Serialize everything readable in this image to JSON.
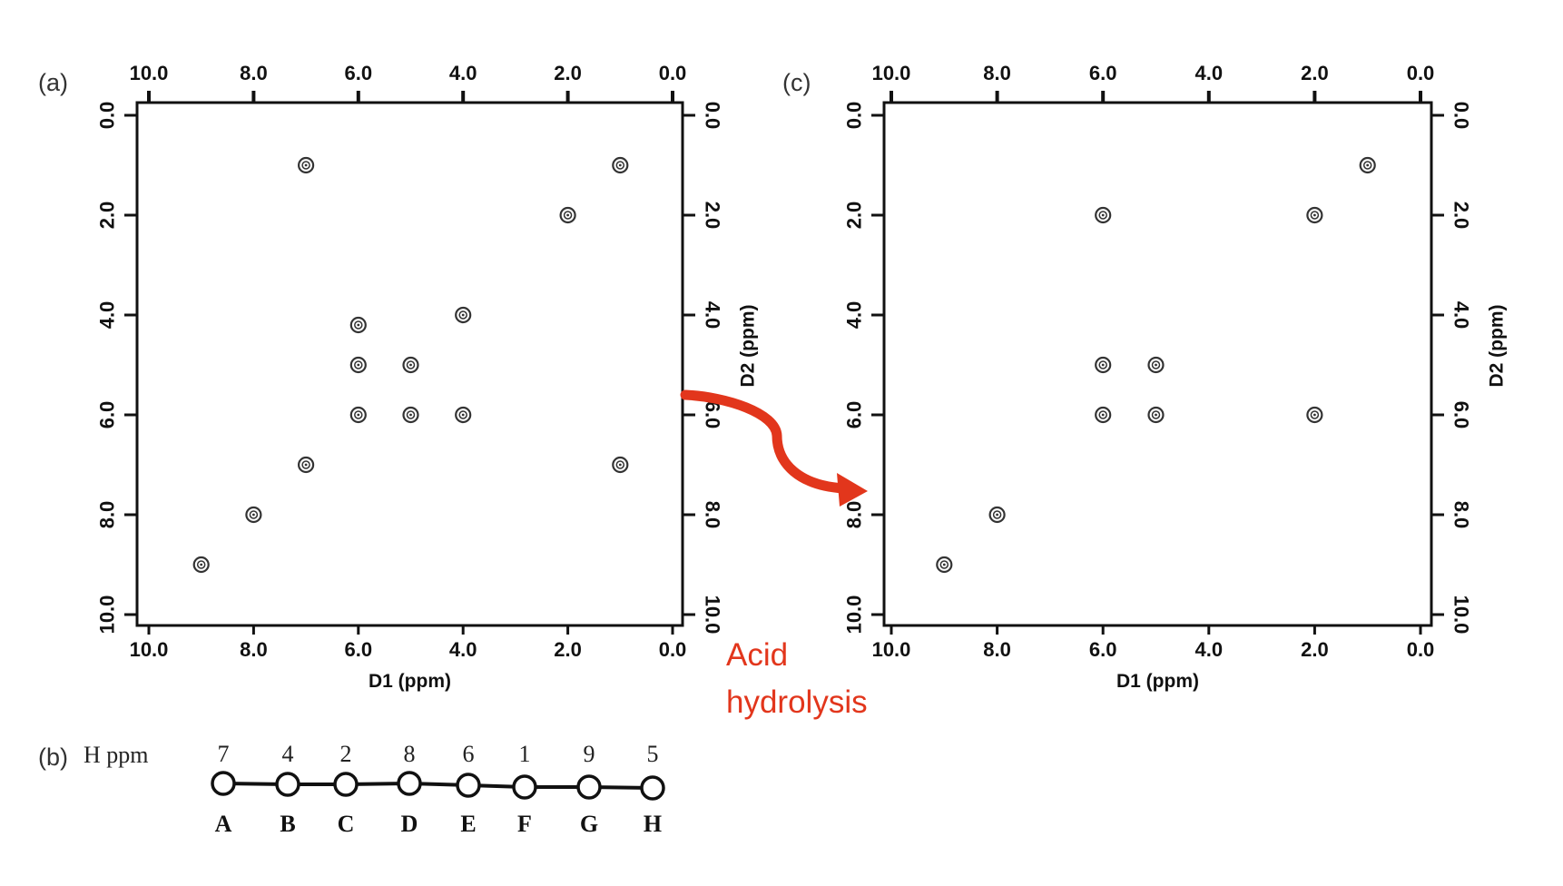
{
  "colors": {
    "arrow": "#e2361c",
    "ink": "#111111"
  },
  "arrow": {
    "line1": "Acid",
    "line2": "hydrolysis"
  },
  "chart_data": [
    {
      "type": "scatter",
      "panel_label": "(a)",
      "xlabel": "D1 (ppm)",
      "ylabel": "D2 (ppm)",
      "xlim": [
        10.0,
        0.0
      ],
      "ylim": [
        0.0,
        10.0
      ],
      "ticks": [
        "10.0",
        "8.0",
        "6.0",
        "4.0",
        "2.0",
        "0.0"
      ],
      "y_ticks": [
        "0.0",
        "2.0",
        "4.0",
        "6.0",
        "8.0",
        "10.0"
      ],
      "grid": false,
      "points": [
        {
          "x": 7.0,
          "y": 1.0
        },
        {
          "x": 1.0,
          "y": 1.0
        },
        {
          "x": 2.0,
          "y": 2.0
        },
        {
          "x": 4.0,
          "y": 4.0
        },
        {
          "x": 6.0,
          "y": 4.2
        },
        {
          "x": 6.0,
          "y": 5.0
        },
        {
          "x": 5.0,
          "y": 5.0
        },
        {
          "x": 6.0,
          "y": 6.0
        },
        {
          "x": 5.0,
          "y": 6.0
        },
        {
          "x": 4.0,
          "y": 6.0
        },
        {
          "x": 7.0,
          "y": 7.0
        },
        {
          "x": 1.0,
          "y": 7.0
        },
        {
          "x": 8.0,
          "y": 8.0
        },
        {
          "x": 9.0,
          "y": 9.0
        }
      ]
    },
    {
      "type": "scatter",
      "panel_label": "(c)",
      "xlabel": "D1 (ppm)",
      "ylabel": "D2 (ppm)",
      "xlim": [
        10.0,
        0.0
      ],
      "ylim": [
        0.0,
        10.0
      ],
      "ticks": [
        "10.0",
        "8.0",
        "6.0",
        "4.0",
        "2.0",
        "0.0"
      ],
      "y_ticks": [
        "0.0",
        "2.0",
        "4.0",
        "6.0",
        "8.0",
        "10.0"
      ],
      "grid": false,
      "points": [
        {
          "x": 1.0,
          "y": 1.0
        },
        {
          "x": 2.0,
          "y": 2.0
        },
        {
          "x": 6.0,
          "y": 2.0
        },
        {
          "x": 6.0,
          "y": 5.0
        },
        {
          "x": 5.0,
          "y": 5.0
        },
        {
          "x": 6.0,
          "y": 6.0
        },
        {
          "x": 5.0,
          "y": 6.0
        },
        {
          "x": 2.0,
          "y": 6.0
        },
        {
          "x": 8.0,
          "y": 8.0
        },
        {
          "x": 9.0,
          "y": 9.0
        }
      ]
    }
  ],
  "chain": {
    "panel_label": "(b)",
    "label": "H ppm",
    "nodes": [
      {
        "ppm": "7",
        "letter": "A"
      },
      {
        "ppm": "4",
        "letter": "B"
      },
      {
        "ppm": "2",
        "letter": "C"
      },
      {
        "ppm": "8",
        "letter": "D"
      },
      {
        "ppm": "6",
        "letter": "E"
      },
      {
        "ppm": "1",
        "letter": "F"
      },
      {
        "ppm": "9",
        "letter": "G"
      },
      {
        "ppm": "5",
        "letter": "H"
      }
    ]
  }
}
